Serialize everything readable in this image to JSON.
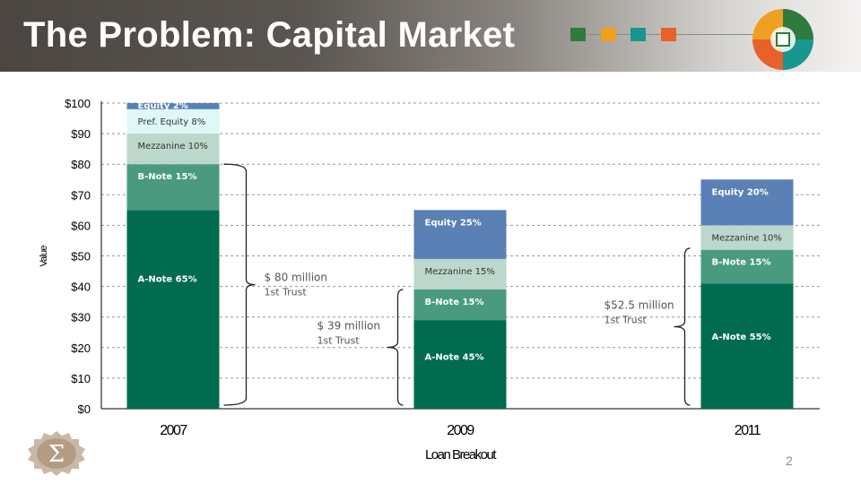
{
  "title": "The Problem: Capital Market",
  "page_number": "2",
  "colors": {
    "a_note": "#006b4f",
    "b_note": "#4a9a80",
    "mezzanine": "#bcd7cb",
    "pref_equity": "#def8f8",
    "equity": "#5a80b5",
    "header_squares": [
      "#2e7a3f",
      "#f0a020",
      "#1a9690",
      "#e8602a"
    ]
  },
  "chart_data": {
    "type": "bar",
    "stacked": true,
    "xlabel": "Loan Breakout",
    "ylabel": "Value",
    "ylim": [
      0,
      100
    ],
    "yticks": [
      "$0",
      "$10",
      "$20",
      "$30",
      "$40",
      "$50",
      "$60",
      "$70",
      "$80",
      "$90",
      "$100"
    ],
    "grid": true,
    "categories": [
      "2007",
      "2009",
      "2011"
    ],
    "series": [
      {
        "key": "a_note",
        "values": [
          65,
          29,
          41
        ],
        "labels": [
          "A-Note 65%",
          "A-Note 45%",
          "A-Note 55%"
        ]
      },
      {
        "key": "b_note",
        "values": [
          15,
          10,
          11
        ],
        "labels": [
          "B-Note 15%",
          "B-Note 15%",
          "B-Note 15%"
        ]
      },
      {
        "key": "mezzanine",
        "values": [
          10,
          10,
          8
        ],
        "labels": [
          "Mezzanine 10%",
          "Mezzanine 15%",
          "Mezzanine 10%"
        ]
      },
      {
        "key": "pref_equity",
        "values": [
          8,
          0,
          0
        ],
        "labels": [
          "Pref. Equity 8%",
          "",
          ""
        ]
      },
      {
        "key": "equity",
        "values": [
          2,
          16,
          15
        ],
        "labels": [
          "Equity 2%",
          "Equity 25%",
          "Equity 20%"
        ]
      }
    ],
    "annotations": [
      {
        "line1": "$ 80 million",
        "line2": "1st Trust",
        "category": "2007",
        "from": 0,
        "to": 80
      },
      {
        "line1": "$ 39 million",
        "line2": "1st Trust",
        "category": "2009",
        "from": 0,
        "to": 39
      },
      {
        "line1": "$52.5 million",
        "line2": "1st Trust",
        "category": "2011",
        "from": 0,
        "to": 52.5
      }
    ]
  }
}
